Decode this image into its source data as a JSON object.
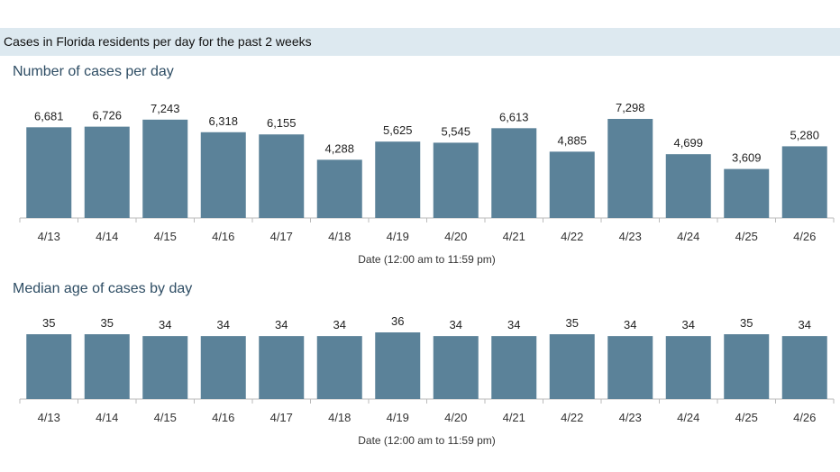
{
  "header": {
    "title": "Cases in Florida residents per day for the past 2 weeks"
  },
  "colors": {
    "bar": "#5b8299",
    "axis": "#bbbbbb",
    "header_bg": "#dde9f0",
    "title": "#2e4d64"
  },
  "chart_data": [
    {
      "type": "bar",
      "title": "Number of cases per day",
      "xlabel": "Date (12:00 am to 11:59 pm)",
      "ylabel": "",
      "categories": [
        "4/13",
        "4/14",
        "4/15",
        "4/16",
        "4/17",
        "4/18",
        "4/19",
        "4/20",
        "4/21",
        "4/22",
        "4/23",
        "4/24",
        "4/25",
        "4/26"
      ],
      "values": [
        6681,
        6726,
        7243,
        6318,
        6155,
        4288,
        5625,
        5545,
        6613,
        4885,
        7298,
        4699,
        3609,
        5280
      ],
      "labels": [
        "6,681",
        "6,726",
        "7,243",
        "6,318",
        "6,155",
        "4,288",
        "5,625",
        "5,545",
        "6,613",
        "4,885",
        "7,298",
        "4,699",
        "3,609",
        "5,280"
      ],
      "ylim": [
        0,
        7298
      ]
    },
    {
      "type": "bar",
      "title": "Median age of cases by day",
      "xlabel": "Date (12:00 am to 11:59 pm)",
      "ylabel": "",
      "categories": [
        "4/13",
        "4/14",
        "4/15",
        "4/16",
        "4/17",
        "4/18",
        "4/19",
        "4/20",
        "4/21",
        "4/22",
        "4/23",
        "4/24",
        "4/25",
        "4/26"
      ],
      "values": [
        35,
        35,
        34,
        34,
        34,
        34,
        36,
        34,
        34,
        35,
        34,
        34,
        35,
        34
      ],
      "labels": [
        "35",
        "35",
        "34",
        "34",
        "34",
        "34",
        "36",
        "34",
        "34",
        "35",
        "34",
        "34",
        "35",
        "34"
      ],
      "ylim": [
        0,
        36
      ]
    }
  ]
}
